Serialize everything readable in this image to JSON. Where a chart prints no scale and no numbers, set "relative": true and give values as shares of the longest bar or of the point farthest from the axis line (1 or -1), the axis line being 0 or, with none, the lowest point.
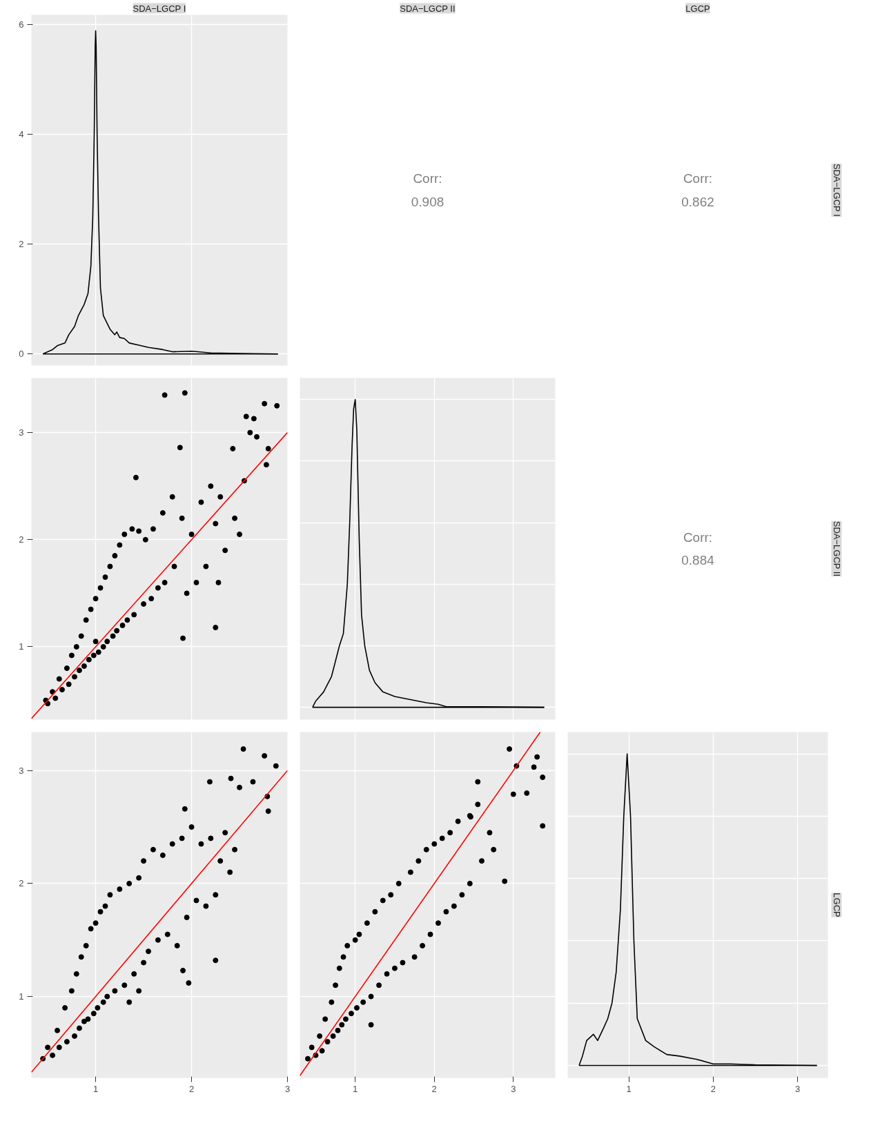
{
  "chart_data": [
    {
      "type": "line",
      "title": "SDA−LGCP I",
      "xlim": [
        0.33,
        3.0
      ],
      "xticks": [
        1,
        2,
        3
      ],
      "ylim": [
        -0.21,
        6.17
      ],
      "yticks": [
        0,
        2,
        4,
        6
      ],
      "tick_labels": "y",
      "grid": true,
      "series": [
        {
          "color": "#000000",
          "x": [
            0.45,
            0.55,
            0.6,
            0.68,
            0.72,
            0.78,
            0.82,
            0.88,
            0.92,
            0.95,
            0.97,
            0.985,
            0.995,
            1.0,
            1.005,
            1.015,
            1.03,
            1.05,
            1.08,
            1.15,
            1.2,
            1.22,
            1.25,
            1.3,
            1.35,
            1.45,
            1.55,
            1.7,
            1.8,
            2.0,
            2.2,
            2.5,
            2.9
          ],
          "values": [
            0,
            0.08,
            0.15,
            0.2,
            0.35,
            0.5,
            0.7,
            0.9,
            1.1,
            1.6,
            2.5,
            4.0,
            5.6,
            5.88,
            5.6,
            4.0,
            2.5,
            1.2,
            0.7,
            0.45,
            0.35,
            0.4,
            0.3,
            0.28,
            0.2,
            0.16,
            0.12,
            0.08,
            0.04,
            0.05,
            0.02,
            0.01,
            0
          ]
        },
        {
          "color": "#000000",
          "x": [
            0.45,
            2.9
          ],
          "values": [
            0,
            0
          ]
        }
      ]
    },
    {
      "type": "other",
      "title": "SDA−LGCP II",
      "annotations": [
        "Corr:",
        "0.908"
      ]
    },
    {
      "type": "other",
      "title": "LGCP",
      "y2label": "SDA−LGCP I",
      "annotations": [
        "Corr:",
        "0.862"
      ]
    },
    {
      "type": "scatter",
      "xlim": [
        0.33,
        3.0
      ],
      "xticks": [
        1,
        2,
        3
      ],
      "ylim": [
        0.32,
        3.51
      ],
      "yticks": [
        1,
        2,
        3
      ],
      "tick_labels": "y",
      "grid": true,
      "series": [
        {
          "type": "scatter",
          "color": "#000000",
          "marker": "circle",
          "x": [
            0.48,
            0.5,
            0.55,
            0.58,
            0.62,
            0.65,
            0.7,
            0.72,
            0.75,
            0.78,
            0.8,
            0.83,
            0.85,
            0.88,
            0.9,
            0.93,
            0.95,
            0.98,
            1.0,
            1.0,
            1.03,
            1.05,
            1.08,
            1.1,
            1.12,
            1.15,
            1.18,
            1.2,
            1.22,
            1.25,
            1.28,
            1.3,
            1.33,
            1.38,
            1.4,
            1.45,
            1.5,
            1.52,
            1.58,
            1.6,
            1.65,
            1.7,
            1.72,
            1.8,
            1.82,
            1.9,
            1.95,
            2.0,
            2.05,
            2.1,
            2.15,
            2.2,
            2.25,
            2.3,
            2.35,
            2.45,
            2.55,
            2.5,
            1.72,
            1.93,
            2.76,
            2.89,
            2.57,
            2.65,
            2.61,
            2.68,
            2.8,
            2.78,
            1.88,
            1.42,
            2.43,
            1.91,
            2.25,
            2.28
          ],
          "values": [
            0.5,
            0.47,
            0.58,
            0.52,
            0.7,
            0.6,
            0.8,
            0.65,
            0.92,
            0.72,
            1.0,
            0.78,
            1.1,
            0.82,
            1.25,
            0.88,
            1.35,
            0.92,
            1.45,
            1.05,
            0.95,
            1.55,
            1.0,
            1.65,
            1.05,
            1.75,
            1.1,
            1.85,
            1.15,
            1.95,
            1.2,
            2.05,
            1.25,
            2.1,
            1.3,
            2.08,
            1.4,
            2.0,
            1.45,
            2.1,
            1.55,
            2.25,
            1.6,
            2.4,
            1.75,
            2.2,
            1.5,
            2.05,
            1.6,
            2.35,
            1.75,
            2.5,
            2.15,
            2.4,
            1.9,
            2.2,
            2.55,
            2.05,
            3.35,
            3.37,
            3.27,
            3.25,
            3.15,
            3.13,
            3.0,
            2.96,
            2.85,
            2.7,
            2.86,
            2.58,
            2.85,
            1.08,
            1.18,
            1.6
          ]
        },
        {
          "type": "line",
          "color": "#ff0000",
          "marker": "none",
          "x": [
            0.33,
            3.0
          ],
          "values": [
            0.33,
            3.0
          ]
        }
      ]
    },
    {
      "type": "line",
      "relative": true,
      "xlim": [
        0.3,
        3.53
      ],
      "xticks": [
        1,
        2,
        3
      ],
      "tick_labels": false,
      "grid": true,
      "series": [
        {
          "color": "#000000",
          "x": [
            0.46,
            0.5,
            0.55,
            0.6,
            0.65,
            0.7,
            0.75,
            0.8,
            0.85,
            0.9,
            0.93,
            0.96,
            0.98,
            1.0,
            1.02,
            1.05,
            1.08,
            1.12,
            1.18,
            1.25,
            1.35,
            1.5,
            1.7,
            1.9,
            2.05,
            2.15,
            2.6,
            3.39
          ],
          "values": [
            0,
            0.02,
            0.035,
            0.05,
            0.075,
            0.1,
            0.15,
            0.2,
            0.24,
            0.4,
            0.6,
            0.85,
            0.97,
            1.0,
            0.9,
            0.55,
            0.3,
            0.2,
            0.12,
            0.08,
            0.05,
            0.035,
            0.025,
            0.015,
            0.01,
            0.002,
            0.002,
            0
          ]
        },
        {
          "color": "#000000",
          "x": [
            0.46,
            3.39
          ],
          "values": [
            0,
            0
          ]
        }
      ]
    },
    {
      "type": "other",
      "y2label": "SDA−LGCP II",
      "annotations": [
        "Corr:",
        "0.884"
      ]
    },
    {
      "type": "scatter",
      "xlim": [
        0.33,
        3.0
      ],
      "xticks": [
        1,
        2,
        3
      ],
      "ylim": [
        0.28,
        3.34
      ],
      "yticks": [
        1,
        2,
        3
      ],
      "grid": true,
      "series": [
        {
          "type": "scatter",
          "color": "#000000",
          "marker": "circle",
          "x": [
            0.45,
            0.5,
            0.55,
            0.6,
            0.62,
            0.68,
            0.7,
            0.75,
            0.78,
            0.8,
            0.83,
            0.85,
            0.88,
            0.9,
            0.92,
            0.95,
            0.98,
            1.0,
            1.02,
            1.05,
            1.08,
            1.1,
            1.12,
            1.15,
            1.2,
            1.25,
            1.3,
            1.35,
            1.4,
            1.45,
            1.5,
            1.5,
            1.55,
            1.6,
            1.65,
            1.7,
            1.75,
            1.8,
            1.85,
            1.9,
            1.95,
            2.0,
            2.05,
            2.1,
            2.15,
            2.2,
            2.25,
            2.3,
            2.35,
            2.4,
            2.45,
            1.35,
            1.45,
            2.54,
            2.76,
            2.88,
            2.19,
            2.41,
            2.5,
            2.64,
            2.79,
            1.93,
            2.8,
            1.91,
            2.25,
            1.97
          ],
          "values": [
            0.45,
            0.55,
            0.48,
            0.7,
            0.55,
            0.9,
            0.6,
            1.05,
            0.65,
            1.2,
            0.72,
            1.35,
            0.78,
            1.45,
            0.8,
            1.6,
            0.85,
            1.65,
            0.9,
            1.75,
            0.95,
            1.8,
            1.0,
            1.9,
            1.05,
            1.95,
            1.1,
            2.0,
            1.2,
            2.05,
            1.3,
            2.2,
            1.4,
            2.3,
            1.5,
            2.25,
            1.55,
            2.35,
            1.45,
            2.4,
            1.7,
            2.5,
            1.85,
            2.35,
            1.8,
            2.4,
            1.9,
            2.2,
            2.45,
            2.1,
            2.3,
            0.95,
            1.05,
            3.19,
            3.13,
            3.04,
            2.9,
            2.93,
            2.85,
            2.9,
            2.77,
            2.66,
            2.64,
            1.23,
            1.32,
            1.12
          ]
        },
        {
          "type": "line",
          "color": "#ff0000",
          "marker": "none",
          "x": [
            0.33,
            3.0
          ],
          "values": [
            0.33,
            3.0
          ]
        }
      ]
    },
    {
      "type": "scatter",
      "xlim": [
        0.3,
        3.53
      ],
      "xticks": [
        1,
        2,
        3
      ],
      "ylim": [
        0.28,
        3.34
      ],
      "yticks": [
        1,
        2,
        3
      ],
      "tick_labels": "x",
      "grid": true,
      "series": [
        {
          "type": "scatter",
          "color": "#000000",
          "marker": "circle",
          "x": [
            0.4,
            0.45,
            0.5,
            0.55,
            0.58,
            0.62,
            0.65,
            0.7,
            0.72,
            0.75,
            0.78,
            0.8,
            0.83,
            0.85,
            0.88,
            0.9,
            0.95,
            1.0,
            1.02,
            1.05,
            1.1,
            1.15,
            1.2,
            1.25,
            1.3,
            1.35,
            1.4,
            1.45,
            1.5,
            1.55,
            1.6,
            1.7,
            1.75,
            1.8,
            1.85,
            1.9,
            1.95,
            2.0,
            2.05,
            2.1,
            2.15,
            2.2,
            2.25,
            2.3,
            2.35,
            2.45,
            2.45,
            2.55,
            2.6,
            2.7,
            2.75,
            1.2,
            2.95,
            3.04,
            3.37,
            3.37,
            3.0,
            3.17,
            2.89,
            2.46,
            2.55,
            3.3,
            3.26
          ],
          "values": [
            0.45,
            0.55,
            0.48,
            0.65,
            0.52,
            0.8,
            0.6,
            0.95,
            0.65,
            1.1,
            0.7,
            1.25,
            0.75,
            1.35,
            0.8,
            1.45,
            0.85,
            1.5,
            0.9,
            1.55,
            0.95,
            1.65,
            1.0,
            1.75,
            1.1,
            1.85,
            1.2,
            1.9,
            1.25,
            2.0,
            1.3,
            2.1,
            1.35,
            2.2,
            1.45,
            2.3,
            1.55,
            2.35,
            1.65,
            2.4,
            1.75,
            2.45,
            1.8,
            2.55,
            1.9,
            2.6,
            2.0,
            2.7,
            2.2,
            2.45,
            2.3,
            0.75,
            3.19,
            3.04,
            2.94,
            2.51,
            2.79,
            2.8,
            2.02,
            2.59,
            2.9,
            3.12,
            3.03
          ]
        },
        {
          "type": "line",
          "color": "#ff0000",
          "marker": "none",
          "x": [
            0.3,
            3.34
          ],
          "values": [
            0.3,
            3.34
          ]
        }
      ]
    },
    {
      "type": "line",
      "relative": true,
      "xlim": [
        0.275,
        3.36
      ],
      "xticks": [
        1,
        2,
        3
      ],
      "tick_labels": "x",
      "y2label": "LGCP",
      "grid": true,
      "series": [
        {
          "color": "#000000",
          "x": [
            0.41,
            0.45,
            0.5,
            0.58,
            0.63,
            0.7,
            0.75,
            0.8,
            0.85,
            0.9,
            0.94,
            0.98,
            1.02,
            1.06,
            1.1,
            1.2,
            1.3,
            1.45,
            1.6,
            1.8,
            2.0,
            2.2,
            2.5,
            3.23
          ],
          "values": [
            0,
            0.03,
            0.08,
            0.1,
            0.08,
            0.12,
            0.15,
            0.2,
            0.3,
            0.5,
            0.8,
            1.0,
            0.8,
            0.4,
            0.15,
            0.08,
            0.06,
            0.035,
            0.03,
            0.02,
            0.005,
            0.005,
            0.002,
            0
          ]
        },
        {
          "color": "#000000",
          "x": [
            0.41,
            3.23
          ],
          "values": [
            0,
            0
          ]
        }
      ]
    }
  ]
}
